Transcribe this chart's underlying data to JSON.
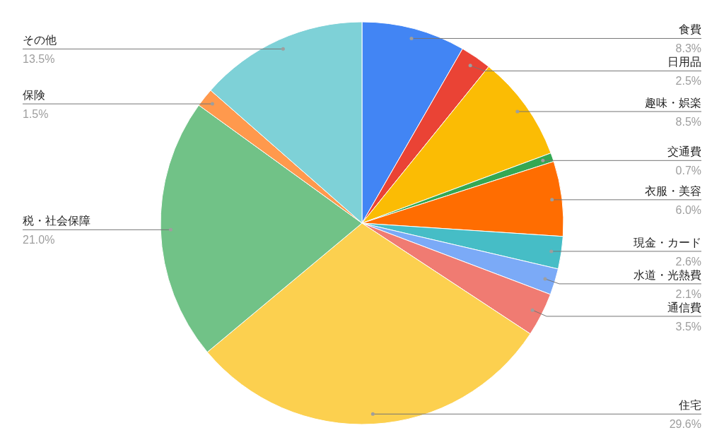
{
  "chart_data": {
    "type": "pie",
    "categories": [
      "食費",
      "日用品",
      "趣味・娯楽",
      "交通費",
      "衣服・美容",
      "現金・カード",
      "水道・光熱費",
      "通信費",
      "住宅",
      "税・社会保障",
      "保険",
      "その他"
    ],
    "values": [
      8.3,
      2.5,
      8.5,
      0.7,
      6.0,
      2.6,
      2.1,
      3.5,
      29.6,
      21.0,
      1.5,
      13.5
    ],
    "value_labels": [
      "8.3%",
      "2.5%",
      "8.5%",
      "0.7%",
      "6.0%",
      "2.6%",
      "2.1%",
      "3.5%",
      "29.6%",
      "21.0%",
      "1.5%",
      "13.5%"
    ],
    "colors": [
      "#4285f4",
      "#ea4335",
      "#fbbc04",
      "#34a853",
      "#ff6d01",
      "#46bdc6",
      "#7baaf7",
      "#f07b72",
      "#fcd04f",
      "#71c287",
      "#ff994d",
      "#7ed1d7"
    ]
  }
}
